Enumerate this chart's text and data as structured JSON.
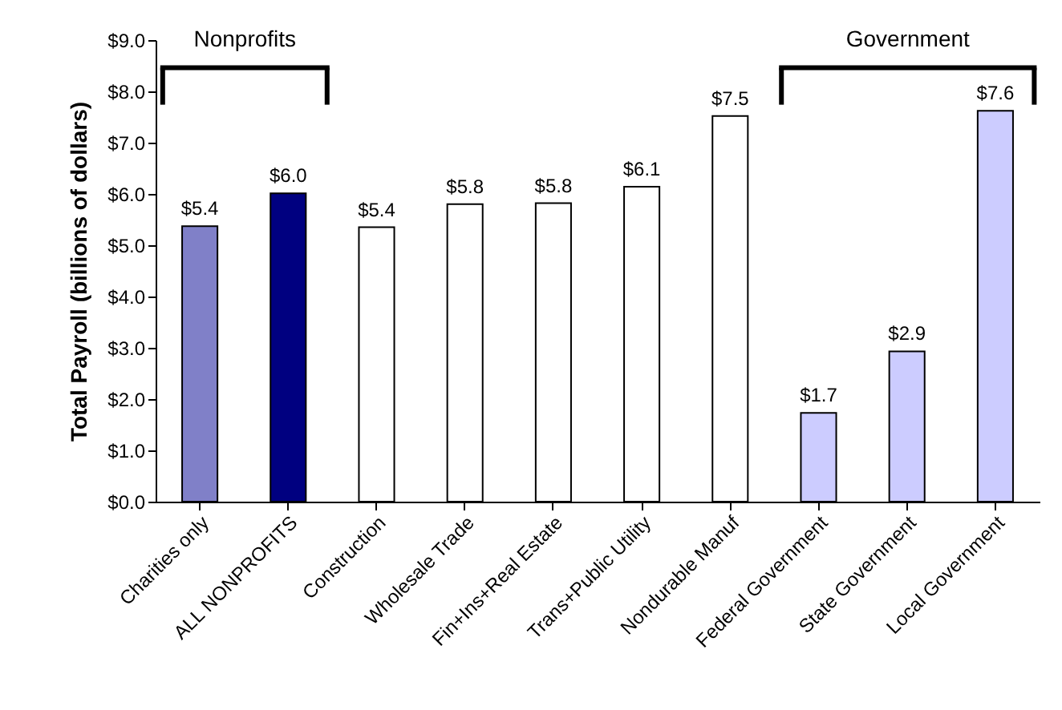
{
  "chart_data": {
    "type": "bar",
    "ylabel": "Total Payroll (billions of dollars)",
    "categories": [
      "Charities only",
      "ALL NONPROFITS",
      "Construction",
      "Wholesale Trade",
      "Fin+Ins+Real Estate",
      "Trans+Public Utility",
      "Nondurable Manuf",
      "Federal Government",
      "State Government",
      "Local Government"
    ],
    "values": [
      5.37,
      6.01,
      5.35,
      5.8,
      5.82,
      6.14,
      7.52,
      1.73,
      2.93,
      7.62
    ],
    "value_labels": [
      "$5.4",
      "$6.0",
      "$5.4",
      "$5.8",
      "$5.8",
      "$6.1",
      "$7.5",
      "$1.7",
      "$2.9",
      "$7.6"
    ],
    "colors": [
      "#8080c8",
      "#000080",
      "#ffffff",
      "#ffffff",
      "#ffffff",
      "#ffffff",
      "#ffffff",
      "#ccccff",
      "#ccccff",
      "#ccccff"
    ],
    "ylim": [
      0,
      9
    ],
    "yticks": [
      {
        "value": 0,
        "label": "$0.0"
      },
      {
        "value": 1,
        "label": "$1.0"
      },
      {
        "value": 2,
        "label": "$2.0"
      },
      {
        "value": 3,
        "label": "$3.0"
      },
      {
        "value": 4,
        "label": "$4.0"
      },
      {
        "value": 5,
        "label": "$5.0"
      },
      {
        "value": 6,
        "label": "$6.0"
      },
      {
        "value": 7,
        "label": "$7.0"
      },
      {
        "value": 8,
        "label": "$8.0"
      },
      {
        "value": 9,
        "label": "$9.0"
      }
    ],
    "annotations": [
      "Nonprofits",
      "Government"
    ],
    "grid": false
  }
}
